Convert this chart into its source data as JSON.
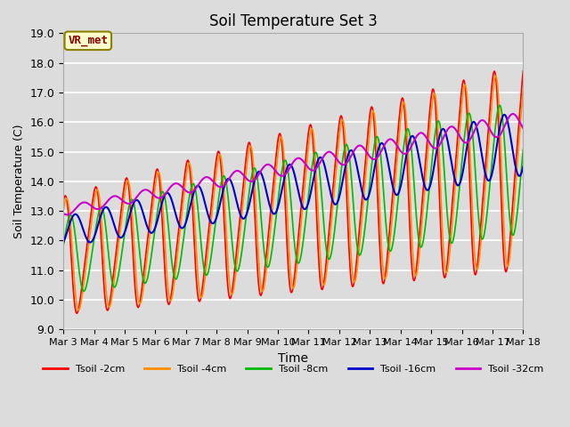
{
  "title": "Soil Temperature Set 3",
  "xlabel": "Time",
  "ylabel": "Soil Temperature (C)",
  "ylim": [
    9.0,
    19.0
  ],
  "yticks": [
    9.0,
    10.0,
    11.0,
    12.0,
    13.0,
    14.0,
    15.0,
    16.0,
    17.0,
    18.0,
    19.0
  ],
  "xtick_labels": [
    "Mar 3",
    "Mar 4",
    "Mar 5",
    "Mar 6",
    "Mar 7",
    "Mar 8",
    "Mar 9",
    "Mar 10",
    "Mar 11",
    "Mar 12",
    "Mar 13",
    "Mar 14",
    "Mar 15",
    "Mar 16",
    "Mar 17",
    "Mar 18"
  ],
  "annotation_text": "VR_met",
  "series_colors": [
    "#FF0000",
    "#FF8C00",
    "#00BB00",
    "#0000CC",
    "#CC00CC"
  ],
  "series_labels": [
    "Tsoil -2cm",
    "Tsoil -4cm",
    "Tsoil -8cm",
    "Tsoil -16cm",
    "Tsoil -32cm"
  ],
  "series_lw": [
    1.2,
    1.2,
    1.2,
    1.5,
    1.5
  ],
  "bg_color": "#DCDCDC",
  "grid_color": "#FFFFFF",
  "n_points": 720
}
